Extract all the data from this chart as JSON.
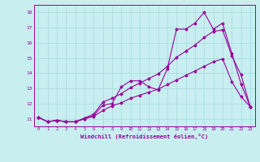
{
  "title": "",
  "xlabel": "Windchill (Refroidissement éolien,°C)",
  "ylabel": "",
  "bg_color": "#c8eef0",
  "line_color": "#990099",
  "grid_color": "#aadddd",
  "ylim": [
    10.5,
    18.5
  ],
  "xlim": [
    -0.5,
    23.5
  ],
  "yticks": [
    11,
    12,
    13,
    14,
    15,
    16,
    17,
    18
  ],
  "xticks": [
    0,
    1,
    2,
    3,
    4,
    5,
    6,
    7,
    8,
    9,
    10,
    11,
    12,
    13,
    14,
    15,
    16,
    17,
    18,
    19,
    20,
    21,
    22,
    23
  ],
  "series1_x": [
    0,
    1,
    2,
    3,
    4,
    5,
    6,
    7,
    8,
    9,
    10,
    11,
    12,
    13,
    14,
    15,
    16,
    17,
    18,
    19,
    20,
    21,
    22,
    23
  ],
  "series1_y": [
    11.1,
    10.8,
    10.9,
    10.8,
    10.8,
    11.0,
    11.2,
    11.9,
    12.0,
    13.1,
    13.5,
    13.5,
    13.1,
    12.9,
    14.3,
    16.9,
    16.9,
    17.3,
    18.0,
    16.9,
    17.3,
    15.3,
    13.3,
    11.8
  ],
  "series2_x": [
    0,
    1,
    2,
    3,
    4,
    5,
    6,
    7,
    8,
    9,
    10,
    11,
    12,
    13,
    14,
    15,
    16,
    17,
    18,
    19,
    20,
    21,
    22,
    23
  ],
  "series2_y": [
    11.1,
    10.8,
    10.9,
    10.8,
    10.8,
    11.05,
    11.3,
    12.1,
    12.35,
    12.65,
    13.05,
    13.35,
    13.65,
    13.95,
    14.45,
    15.05,
    15.45,
    15.85,
    16.35,
    16.75,
    16.85,
    15.15,
    13.9,
    11.8
  ],
  "series3_x": [
    0,
    1,
    2,
    3,
    4,
    5,
    6,
    7,
    8,
    9,
    10,
    11,
    12,
    13,
    14,
    15,
    16,
    17,
    18,
    19,
    20,
    21,
    22,
    23
  ],
  "series3_y": [
    11.1,
    10.8,
    10.9,
    10.8,
    10.8,
    11.0,
    11.15,
    11.55,
    11.85,
    12.05,
    12.35,
    12.55,
    12.75,
    12.95,
    13.25,
    13.55,
    13.85,
    14.15,
    14.45,
    14.75,
    14.95,
    13.45,
    12.45,
    11.8
  ]
}
